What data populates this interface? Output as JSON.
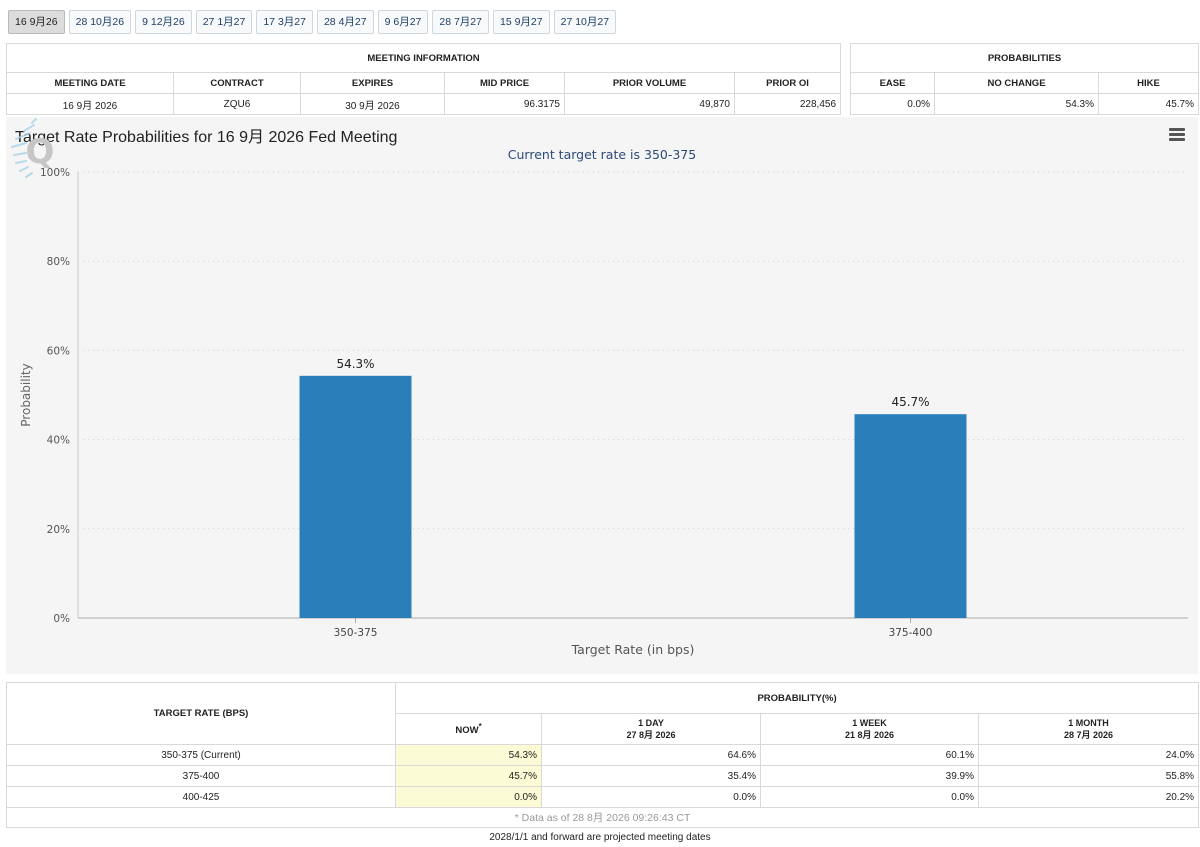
{
  "tabs": [
    "16 9月26",
    "28 10月26",
    "9 12月26",
    "27 1月27",
    "17 3月27",
    "28 4月27",
    "9 6月27",
    "28 7月27",
    "15 9月27",
    "27 10月27"
  ],
  "meeting_info": {
    "caption": "MEETING INFORMATION",
    "headers": [
      "MEETING DATE",
      "CONTRACT",
      "EXPIRES",
      "MID PRICE",
      "PRIOR VOLUME",
      "PRIOR OI"
    ],
    "values": [
      "16 9月 2026",
      "ZQU6",
      "30 9月 2026",
      "96.3175",
      "49,870",
      "228,456"
    ]
  },
  "probabilities": {
    "caption": "PROBABILITIES",
    "headers": [
      "EASE",
      "NO CHANGE",
      "HIKE"
    ],
    "values": [
      "0.0%",
      "54.3%",
      "45.7%"
    ]
  },
  "chart": {
    "title": "Target Rate Probabilities for 16 9月 2026 Fed Meeting",
    "subtitle": "Current target rate is 350-375",
    "menu_icon": "hamburger-menu-icon",
    "watermark": "Q",
    "bar_color": "#2a7fba"
  },
  "chart_data": {
    "type": "bar",
    "title": "Target Rate Probabilities for 16 9月 2026 Fed Meeting",
    "subtitle": "Current target rate is 350-375",
    "xlabel": "Target Rate (in bps)",
    "ylabel": "Probability",
    "categories": [
      "350-375",
      "375-400"
    ],
    "values": [
      54.3,
      45.7
    ],
    "data_labels": [
      "54.3%",
      "45.7%"
    ],
    "ylim": [
      0,
      100
    ],
    "yticks": [
      "0%",
      "20%",
      "40%",
      "60%",
      "80%",
      "100%"
    ],
    "ytick_values": [
      0,
      20,
      40,
      60,
      80,
      100
    ],
    "grid": true,
    "legend": "none"
  },
  "bottom_table": {
    "rate_header": "TARGET RATE (BPS)",
    "prob_header": "PROBABILITY(%)",
    "columns": [
      {
        "label": "NOW",
        "sup": "*",
        "date": ""
      },
      {
        "label": "1 DAY",
        "sup": "",
        "date": "27 8月 2026"
      },
      {
        "label": "1 WEEK",
        "sup": "",
        "date": "21 8月 2026"
      },
      {
        "label": "1 MONTH",
        "sup": "",
        "date": "28 7月 2026"
      }
    ],
    "rows": [
      {
        "rate": "350-375 (Current)",
        "values": [
          "54.3%",
          "64.6%",
          "60.1%",
          "24.0%"
        ]
      },
      {
        "rate": "375-400",
        "values": [
          "45.7%",
          "35.4%",
          "39.9%",
          "55.8%"
        ]
      },
      {
        "rate": "400-425",
        "values": [
          "0.0%",
          "0.0%",
          "0.0%",
          "20.2%"
        ]
      }
    ],
    "note": "* Data as of 28 8月 2026 09:26:43 CT"
  },
  "footer": "2028/1/1 and forward are projected meeting dates"
}
